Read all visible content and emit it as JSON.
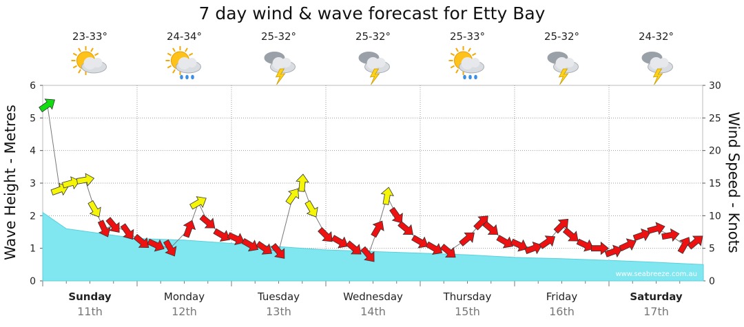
{
  "chart_data": {
    "type": "line",
    "title": "7 day wind & wave forecast for Etty Bay",
    "ylabel_left": "Wave Height - Metres",
    "ylabel_right": "Wind Speed - Knots",
    "ylim_left": [
      0,
      6
    ],
    "ylim_right": [
      0,
      30
    ],
    "yticks_left": [
      "0",
      "1",
      "2",
      "3",
      "4",
      "5",
      "6"
    ],
    "yticks_right": [
      "0",
      "5",
      "10",
      "15",
      "20",
      "25",
      "30"
    ],
    "grid": true,
    "watermark": "www.seabreeze.com.au",
    "days": [
      {
        "name": "Sunday",
        "date": "11th",
        "bold": true,
        "temp": "23-33°",
        "icon": "partly-cloudy-icon"
      },
      {
        "name": "Monday",
        "date": "12th",
        "bold": false,
        "temp": "24-34°",
        "icon": "sun-cloud-rain-icon"
      },
      {
        "name": "Tuesday",
        "date": "13th",
        "bold": false,
        "temp": "25-32°",
        "icon": "storm-cloud-icon"
      },
      {
        "name": "Wednesday",
        "date": "14th",
        "bold": false,
        "temp": "25-32°",
        "icon": "storm-cloud-icon"
      },
      {
        "name": "Thursday",
        "date": "15th",
        "bold": false,
        "temp": "25-33°",
        "icon": "sun-cloud-rain-icon"
      },
      {
        "name": "Friday",
        "date": "16th",
        "bold": false,
        "temp": "25-32°",
        "icon": "storm-cloud-icon"
      },
      {
        "name": "Saturday",
        "date": "17th",
        "bold": true,
        "temp": "24-32°",
        "icon": "storm-cloud-icon"
      }
    ],
    "series": [
      {
        "name": "Wave Height",
        "color": "#80e6f0",
        "x_days": [
          0,
          0.25,
          0.5,
          1,
          1.5,
          2,
          2.5,
          3,
          3.5,
          4,
          4.5,
          5,
          5.5,
          6,
          6.5,
          7
        ],
        "values": [
          2.1,
          1.6,
          1.5,
          1.3,
          1.25,
          1.15,
          1.05,
          0.95,
          0.9,
          0.85,
          0.8,
          0.72,
          0.68,
          0.63,
          0.57,
          0.5
        ]
      },
      {
        "name": "Wind Speed",
        "line_color": "#777777",
        "arrow_colors": {
          "green": "#11dd11",
          "yellow": "#f5f50a",
          "red": "#ee1111"
        },
        "points": [
          {
            "x": 0.05,
            "kn": 27,
            "dir": -35
          },
          {
            "x": 0.18,
            "kn": 14,
            "dir": -20
          },
          {
            "x": 0.3,
            "kn": 15,
            "dir": -15
          },
          {
            "x": 0.45,
            "kn": 15.5,
            "dir": -10
          },
          {
            "x": 0.55,
            "kn": 11,
            "dir": 60
          },
          {
            "x": 0.65,
            "kn": 8,
            "dir": 65
          },
          {
            "x": 0.75,
            "kn": 8.5,
            "dir": 50
          },
          {
            "x": 0.9,
            "kn": 7.5,
            "dir": 55
          },
          {
            "x": 1.05,
            "kn": 6,
            "dir": 40
          },
          {
            "x": 1.2,
            "kn": 5.5,
            "dir": 25
          },
          {
            "x": 1.35,
            "kn": 5,
            "dir": 60
          },
          {
            "x": 1.55,
            "kn": 8,
            "dir": -70
          },
          {
            "x": 1.65,
            "kn": 12,
            "dir": -30
          },
          {
            "x": 1.75,
            "kn": 9,
            "dir": 40
          },
          {
            "x": 1.9,
            "kn": 7,
            "dir": 30
          },
          {
            "x": 2.05,
            "kn": 6.5,
            "dir": 25
          },
          {
            "x": 2.2,
            "kn": 5.5,
            "dir": 30
          },
          {
            "x": 2.35,
            "kn": 5,
            "dir": 35
          },
          {
            "x": 2.5,
            "kn": 4.5,
            "dir": 50
          },
          {
            "x": 2.65,
            "kn": 13,
            "dir": -55
          },
          {
            "x": 2.75,
            "kn": 15,
            "dir": -85
          },
          {
            "x": 2.85,
            "kn": 11,
            "dir": 60
          },
          {
            "x": 3.0,
            "kn": 7,
            "dir": 45
          },
          {
            "x": 3.15,
            "kn": 6,
            "dir": 30
          },
          {
            "x": 3.3,
            "kn": 5,
            "dir": 40
          },
          {
            "x": 3.45,
            "kn": 4,
            "dir": 50
          },
          {
            "x": 3.55,
            "kn": 8,
            "dir": -60
          },
          {
            "x": 3.65,
            "kn": 13,
            "dir": -80
          },
          {
            "x": 3.75,
            "kn": 10,
            "dir": 55
          },
          {
            "x": 3.85,
            "kn": 8,
            "dir": 40
          },
          {
            "x": 4.0,
            "kn": 6,
            "dir": 30
          },
          {
            "x": 4.15,
            "kn": 5,
            "dir": 30
          },
          {
            "x": 4.3,
            "kn": 4.5,
            "dir": 40
          },
          {
            "x": 4.5,
            "kn": 6.5,
            "dir": -40
          },
          {
            "x": 4.65,
            "kn": 9,
            "dir": -45
          },
          {
            "x": 4.75,
            "kn": 8,
            "dir": 40
          },
          {
            "x": 4.9,
            "kn": 6,
            "dir": 30
          },
          {
            "x": 5.05,
            "kn": 5.5,
            "dir": 25
          },
          {
            "x": 5.2,
            "kn": 5,
            "dir": -20
          },
          {
            "x": 5.35,
            "kn": 6,
            "dir": -35
          },
          {
            "x": 5.5,
            "kn": 8.5,
            "dir": -45
          },
          {
            "x": 5.6,
            "kn": 7,
            "dir": 40
          },
          {
            "x": 5.75,
            "kn": 5.5,
            "dir": 25
          },
          {
            "x": 5.9,
            "kn": 5,
            "dir": 0
          },
          {
            "x": 6.05,
            "kn": 4.5,
            "dir": -20
          },
          {
            "x": 6.2,
            "kn": 5.5,
            "dir": -25
          },
          {
            "x": 6.35,
            "kn": 7,
            "dir": -20
          },
          {
            "x": 6.5,
            "kn": 8,
            "dir": -15
          },
          {
            "x": 6.65,
            "kn": 7,
            "dir": -10
          },
          {
            "x": 6.8,
            "kn": 5.5,
            "dir": -60
          },
          {
            "x": 6.92,
            "kn": 6,
            "dir": -40
          }
        ]
      }
    ]
  }
}
